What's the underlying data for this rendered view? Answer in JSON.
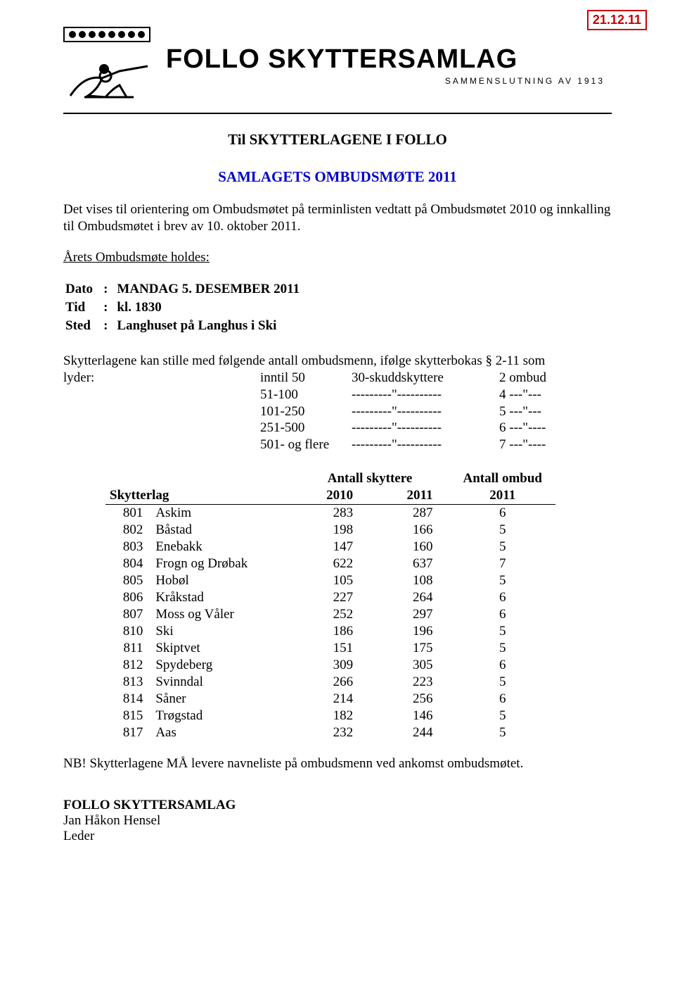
{
  "date_stamp": "21.12.11",
  "letterhead": {
    "org_name": "FOLLO SKYTTERSAMLAG",
    "org_sub": "SAMMENSLUTNING AV 1913"
  },
  "title": "Til SKYTTERLAGENE  I  FOLLO",
  "subtitle": "SAMLAGETS OMBUDSMØTE 2011",
  "intro": "Det vises til orientering om Ombudsmøtet på terminlisten vedtatt på Ombudsmøtet 2010 og innkalling til Ombudsmøtet i brev av 10. oktober 2011.",
  "holdes_label": "Årets Ombudsmøte holdes:",
  "meta": {
    "dato_label": "Dato",
    "dato_value": "MANDAG 5. DESEMBER 2011",
    "tid_label": "Tid",
    "tid_value": "kl. 1830",
    "sted_label": "Sted",
    "sted_value": "Langhuset på Langhus i Ski"
  },
  "ranges_intro_a": "Skytterlagene kan stille med følgende antall ombudsmenn, ifølge skytterbokas § 2-11 som",
  "ranges_intro_b": "lyder:",
  "ranges": [
    {
      "r": "inntil 50",
      "d": "30-skuddskyttere",
      "o": "2 ombud"
    },
    {
      "r": "51-100",
      "d": "---------\"----------",
      "o": "4 ---\"---"
    },
    {
      "r": "101-250",
      "d": "---------\"----------",
      "o": "5 ---\"---"
    },
    {
      "r": "251-500",
      "d": "---------\"----------",
      "o": "6 ---\"----"
    },
    {
      "r": "501- og flere",
      "d": "---------\"----------",
      "o": "7 ---\"----"
    }
  ],
  "table": {
    "head_skyt": "Antall skyttere",
    "head_ombud": "Antall ombud",
    "col_lag": "Skytterlag",
    "col_2010": "2010",
    "col_2011": "2011",
    "col_ombud_2011": "2011",
    "rows": [
      {
        "code": "801",
        "name": "Askim",
        "y2010": "283",
        "y2011": "287",
        "ombud": "6"
      },
      {
        "code": "802",
        "name": "Båstad",
        "y2010": "198",
        "y2011": "166",
        "ombud": "5"
      },
      {
        "code": "803",
        "name": "Enebakk",
        "y2010": "147",
        "y2011": "160",
        "ombud": "5"
      },
      {
        "code": "804",
        "name": "Frogn og Drøbak",
        "y2010": "622",
        "y2011": "637",
        "ombud": "7"
      },
      {
        "code": "805",
        "name": "Hobøl",
        "y2010": "105",
        "y2011": "108",
        "ombud": "5"
      },
      {
        "code": "806",
        "name": "Kråkstad",
        "y2010": "227",
        "y2011": "264",
        "ombud": "6"
      },
      {
        "code": "807",
        "name": "Moss og Våler",
        "y2010": "252",
        "y2011": "297",
        "ombud": "6"
      },
      {
        "code": "810",
        "name": "Ski",
        "y2010": "186",
        "y2011": "196",
        "ombud": "5"
      },
      {
        "code": "811",
        "name": "Skiptvet",
        "y2010": "151",
        "y2011": "175",
        "ombud": "5"
      },
      {
        "code": "812",
        "name": "Spydeberg",
        "y2010": "309",
        "y2011": "305",
        "ombud": "6"
      },
      {
        "code": "813",
        "name": "Svinndal",
        "y2010": "266",
        "y2011": "223",
        "ombud": "5"
      },
      {
        "code": "814",
        "name": "Såner",
        "y2010": "214",
        "y2011": "256",
        "ombud": "6"
      },
      {
        "code": "815",
        "name": "Trøgstad",
        "y2010": "182",
        "y2011": "146",
        "ombud": "5"
      },
      {
        "code": "817",
        "name": "Aas",
        "y2010": "232",
        "y2011": "244",
        "ombud": "5"
      }
    ]
  },
  "nb_line": "NB! Skytterlagene MÅ levere navneliste på ombudsmenn ved ankomst ombudsmøtet.",
  "footer_org": "FOLLO SKYTTERSAMLAG",
  "footer_name": "Jan Håkon Hensel",
  "footer_title": "Leder"
}
